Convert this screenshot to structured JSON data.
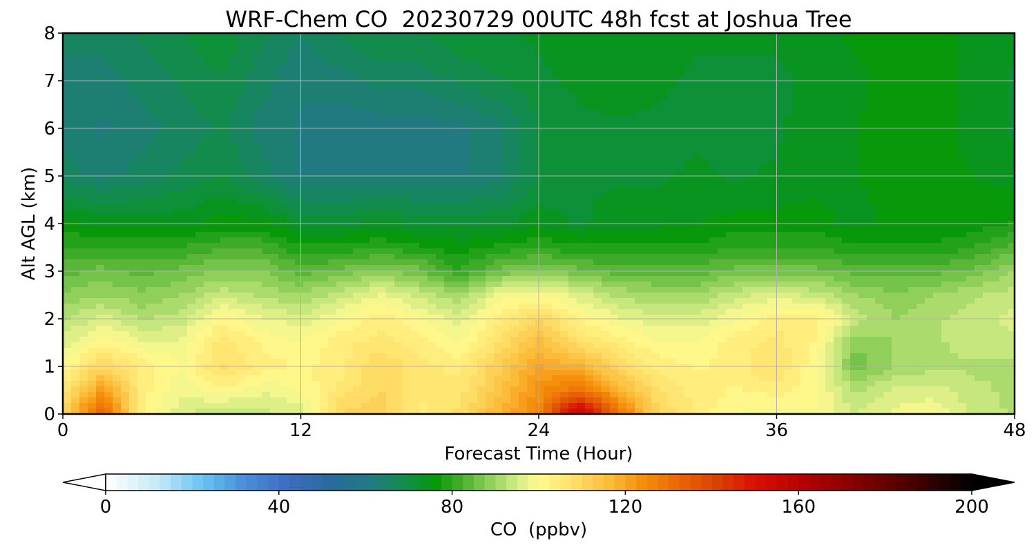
{
  "chart_data": {
    "type": "heatmap",
    "title": "WRF-Chem CO  20230729 00UTC 48h fcst at Joshua Tree",
    "xlabel": "Forecast Time (Hour)",
    "ylabel": "Alt AGL (km)",
    "xlim": [
      0,
      48
    ],
    "ylim": [
      0,
      8
    ],
    "x_ticks": [
      0,
      12,
      24,
      36,
      48
    ],
    "y_ticks": [
      0,
      1,
      2,
      3,
      4,
      5,
      6,
      7,
      8
    ],
    "grid": true,
    "x_hours": [
      0,
      2,
      4,
      6,
      8,
      10,
      12,
      14,
      16,
      18,
      20,
      22,
      24,
      26,
      28,
      30,
      32,
      34,
      36,
      38,
      40,
      42,
      44,
      46,
      48
    ],
    "z_km": [
      0,
      0.5,
      1,
      1.5,
      2,
      2.5,
      3,
      3.5,
      4,
      5,
      6,
      7,
      8
    ],
    "co_ppbv": [
      [
        110,
        135,
        102,
        96,
        92,
        94,
        96,
        110,
        112,
        104,
        108,
        118,
        125,
        160,
        130,
        110,
        104,
        100,
        98,
        100,
        95,
        98,
        100,
        94,
        92
      ],
      [
        106,
        122,
        104,
        98,
        102,
        98,
        100,
        106,
        110,
        106,
        106,
        114,
        124,
        130,
        118,
        108,
        104,
        102,
        104,
        100,
        92,
        96,
        96,
        93,
        92
      ],
      [
        100,
        110,
        104,
        100,
        108,
        104,
        102,
        104,
        110,
        106,
        104,
        112,
        120,
        118,
        110,
        104,
        102,
        104,
        108,
        100,
        86,
        90,
        92,
        92,
        92
      ],
      [
        96,
        102,
        98,
        98,
        106,
        102,
        100,
        104,
        106,
        104,
        100,
        108,
        116,
        108,
        104,
        100,
        100,
        104,
        106,
        102,
        88,
        90,
        92,
        94,
        94
      ],
      [
        92,
        96,
        92,
        94,
        102,
        98,
        96,
        100,
        104,
        100,
        96,
        104,
        110,
        102,
        98,
        96,
        96,
        100,
        104,
        104,
        94,
        90,
        92,
        94,
        96
      ],
      [
        88,
        90,
        88,
        90,
        94,
        92,
        90,
        94,
        98,
        94,
        90,
        98,
        100,
        96,
        92,
        90,
        90,
        94,
        96,
        94,
        90,
        88,
        90,
        92,
        94
      ],
      [
        84,
        86,
        84,
        86,
        88,
        88,
        84,
        86,
        88,
        86,
        80,
        86,
        88,
        86,
        84,
        84,
        84,
        86,
        86,
        86,
        84,
        84,
        84,
        86,
        90
      ],
      [
        80,
        80,
        80,
        80,
        82,
        82,
        78,
        78,
        80,
        78,
        76,
        78,
        80,
        78,
        78,
        78,
        78,
        80,
        80,
        80,
        78,
        78,
        78,
        80,
        84
      ],
      [
        76,
        74,
        74,
        74,
        76,
        76,
        72,
        72,
        73,
        72,
        72,
        72,
        74,
        72,
        74,
        74,
        75,
        76,
        76,
        76,
        74,
        76,
        75,
        76,
        78
      ],
      [
        66,
        64,
        66,
        68,
        70,
        66,
        62,
        62,
        62,
        62,
        62,
        64,
        70,
        72,
        72,
        72,
        73,
        72,
        73,
        74,
        75,
        76,
        76,
        75,
        74
      ],
      [
        64,
        62,
        64,
        66,
        68,
        64,
        62,
        61,
        61,
        61,
        62,
        64,
        70,
        72,
        72,
        72,
        72,
        71,
        72,
        74,
        75,
        77,
        76,
        74,
        72
      ],
      [
        64,
        64,
        66,
        68,
        70,
        66,
        63,
        64,
        66,
        66,
        68,
        70,
        72,
        73,
        74,
        73,
        72,
        72,
        72,
        73,
        74,
        77,
        76,
        74,
        72
      ],
      [
        66,
        66,
        68,
        70,
        72,
        68,
        65,
        68,
        70,
        70,
        72,
        72,
        73,
        74,
        74,
        74,
        73,
        73,
        73,
        74,
        76,
        77,
        76,
        74,
        73
      ]
    ],
    "colorbar": {
      "label": "CO  (ppbv)",
      "min": 0,
      "max": 200,
      "step": 2.5,
      "ticks": [
        0,
        40,
        80,
        120,
        160,
        200
      ],
      "extend": "both",
      "orientation": "horizontal",
      "color_stops": [
        [
          0,
          "#ffffff"
        ],
        [
          12,
          "#c6e9f7"
        ],
        [
          22,
          "#6ac4f2"
        ],
        [
          32,
          "#4a8ed8"
        ],
        [
          42,
          "#3e6cc3"
        ],
        [
          52,
          "#2a6a9a"
        ],
        [
          62,
          "#1f7b7e"
        ],
        [
          70,
          "#0f8e43"
        ],
        [
          76,
          "#049807"
        ],
        [
          82,
          "#45ad2e"
        ],
        [
          88,
          "#88cc55"
        ],
        [
          94,
          "#c8e880"
        ],
        [
          100,
          "#fffb90"
        ],
        [
          108,
          "#ffdf6a"
        ],
        [
          116,
          "#fbbd3a"
        ],
        [
          124,
          "#f58f0c"
        ],
        [
          132,
          "#ea6806"
        ],
        [
          142,
          "#d93d02"
        ],
        [
          150,
          "#d90e02"
        ],
        [
          160,
          "#b90202"
        ],
        [
          172,
          "#8a0101"
        ],
        [
          186,
          "#4a0000"
        ],
        [
          200,
          "#000000"
        ]
      ]
    }
  }
}
